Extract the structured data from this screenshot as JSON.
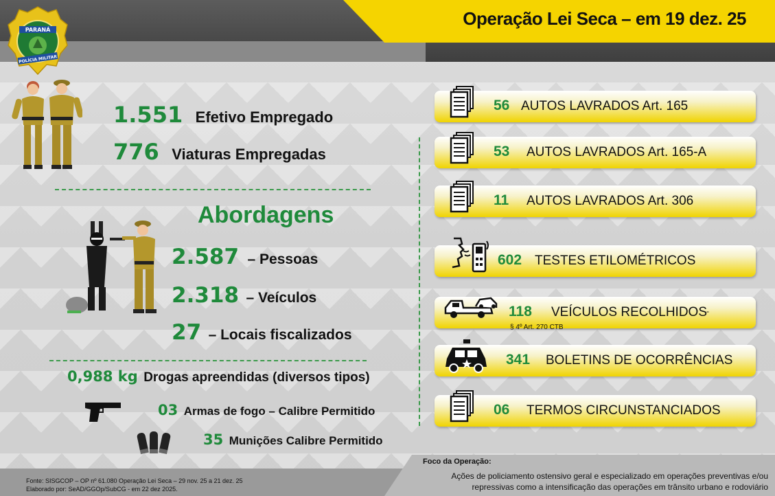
{
  "header": {
    "title": "Operação Lei Seca – em 19 dez. 25",
    "logo": {
      "top": "PARANÁ",
      "bottom": "POLÍCIA MILITAR"
    }
  },
  "left": {
    "efetivo": {
      "value": "1.551",
      "label": "Efetivo Empregado"
    },
    "viaturas": {
      "value": "776",
      "label": "Viaturas Empregadas"
    },
    "abordagens_title": "Abordagens",
    "pessoas": {
      "value": "2.587",
      "label": "– Pessoas"
    },
    "veiculos": {
      "value": "2.318",
      "label": "– Veículos"
    },
    "locais": {
      "value": "27",
      "label": "– Locais fiscalizados"
    },
    "drogas": {
      "value": "0,988 kg",
      "label": "Drogas apreendidas (diversos tipos)"
    },
    "armas": {
      "value": "03",
      "label": "Armas de fogo – Calibre Permitido"
    },
    "municoes": {
      "value": "35",
      "label": "Munições Calibre Permitido"
    }
  },
  "cards": [
    {
      "num": "56",
      "label": "AUTOS LAVRADOS Art. 165",
      "icon": "documents-icon"
    },
    {
      "num": "53",
      "label": "AUTOS LAVRADOS Art. 165-A",
      "icon": "documents-icon"
    },
    {
      "num": "11",
      "label": "AUTOS LAVRADOS Art. 306",
      "icon": "documents-icon"
    },
    {
      "num": "602",
      "label": "TESTES ETILOMÉTRICOS",
      "icon": "breathalyzer-icon"
    },
    {
      "num": "118",
      "label": "VEÍCULOS RECOLHIDOS",
      "suffix": "-",
      "sub": "§ 4º Art. 270 CTB",
      "icon": "tow-truck-icon"
    },
    {
      "num": "341",
      "label": "BOLETINS DE OCORRÊNCIAS",
      "icon": "police-car-icon"
    },
    {
      "num": "06",
      "label": "TERMOS CIRCUNSTANCIADOS",
      "icon": "documents-icon"
    }
  ],
  "footer": {
    "fonte": "Fonte: SISGCOP – OP nº 61.080  Operação Lei Seca – 29 nov. 25 a 21 dez. 25",
    "elaborado": "Elaborado por: SeAD/GGOp/SubCG -  em 22 dez 2025.",
    "foco_title": "Foco da Operação:",
    "foco_line1": "Ações de policiamento ostensivo geral e especializado em operações preventivas e/ou",
    "foco_line2": "repressivas como a intensificação das operações em trânsito urbano e rodoviário"
  },
  "colors": {
    "accent_yellow": "#f5d400",
    "green": "#1f8a3b",
    "dark": "#3f3f3f"
  }
}
